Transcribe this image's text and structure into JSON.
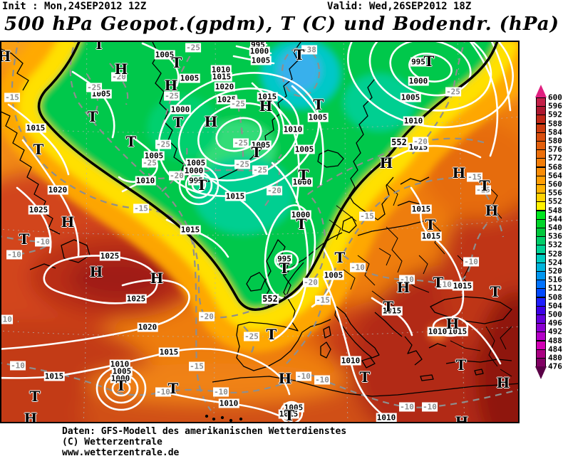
{
  "header": {
    "init": "Init : Mon,24SEP2012 12Z",
    "valid": "Valid: Wed,26SEP2012 18Z",
    "title": "500 hPa Geopot.(gpdm), T (C) und Bodendr. (hPa)"
  },
  "footer": {
    "line1": "Daten: GFS-Modell des amerikanischen Wetterdienstes",
    "line2": "(C) Wetterzentrale",
    "line3": "www.wetterzentrale.de"
  },
  "colorbar": {
    "unit": "gpdm",
    "values": [
      600,
      596,
      592,
      588,
      584,
      580,
      576,
      572,
      568,
      564,
      560,
      556,
      552,
      548,
      544,
      540,
      536,
      532,
      528,
      524,
      520,
      516,
      512,
      508,
      504,
      500,
      496,
      492,
      488,
      484,
      480,
      476
    ],
    "box_colors": [
      "#c42048",
      "#ad1830",
      "#c02818",
      "#cc3c10",
      "#d94e0e",
      "#e35f0c",
      "#ec6f0a",
      "#f37d08",
      "#f98c06",
      "#ff9e04",
      "#ffb202",
      "#ffd200",
      "#fff200",
      "#00e61e",
      "#00d528",
      "#00c83c",
      "#00cd69",
      "#00d296",
      "#00ccc0",
      "#00b4dc",
      "#0096f0",
      "#0072ff",
      "#0048ff",
      "#1e1eff",
      "#3c00e6",
      "#6400dc",
      "#8c00d2",
      "#b400c8",
      "#d200b4",
      "#aa0082",
      "#820064"
    ],
    "arrow_top_color": "#e02080",
    "arrow_bottom_color": "#5a0046"
  },
  "map": {
    "accent_colors": {
      "cold_green": "#00c84b",
      "cold_cyan": "#38b0ec",
      "warm_dark_red": "#a01f12",
      "transition_yellow": "#ffe000",
      "isobar_white": "#ffffff",
      "isotherm_gray": "#8e8e8e"
    },
    "labels": [
      [
        "1005",
        140,
        73,
        "p"
      ],
      [
        "1005",
        229,
        18,
        "p"
      ],
      [
        "995",
        360,
        4,
        "p"
      ],
      [
        "1000",
        362,
        13,
        "p"
      ],
      [
        "1005",
        364,
        26,
        "p"
      ],
      [
        "1005",
        264,
        51,
        "p"
      ],
      [
        "1010",
        308,
        39,
        "p"
      ],
      [
        "1015",
        309,
        49,
        "p"
      ],
      [
        "1020",
        313,
        63,
        "p"
      ],
      [
        "1025",
        316,
        81,
        "p"
      ],
      [
        "1015",
        373,
        77,
        "p"
      ],
      [
        "1000",
        251,
        95,
        "p"
      ],
      [
        "1005",
        214,
        160,
        "p"
      ],
      [
        "1010",
        202,
        195,
        "p"
      ],
      [
        "1005",
        364,
        145,
        "p"
      ],
      [
        "1005",
        273,
        170,
        "p"
      ],
      [
        "1000",
        270,
        181,
        "p"
      ],
      [
        "995",
        273,
        195,
        "p"
      ],
      [
        "1015",
        48,
        121,
        "p"
      ],
      [
        "1020",
        79,
        208,
        "p"
      ],
      [
        "1025",
        52,
        236,
        "p"
      ],
      [
        "1015",
        328,
        217,
        "p"
      ],
      [
        "1015",
        265,
        264,
        "p"
      ],
      [
        "995",
        585,
        28,
        "p"
      ],
      [
        "1000",
        585,
        55,
        "p"
      ],
      [
        "1005",
        574,
        78,
        "p"
      ],
      [
        "1010",
        578,
        111,
        "p"
      ],
      [
        "1005",
        444,
        106,
        "p"
      ],
      [
        "1010",
        409,
        123,
        "p"
      ],
      [
        "1005",
        425,
        151,
        "p"
      ],
      [
        "1000",
        422,
        197,
        "p"
      ],
      [
        "1000",
        420,
        243,
        "p"
      ],
      [
        "1015",
        585,
        148,
        "p"
      ],
      [
        "1015",
        589,
        235,
        "p"
      ],
      [
        "1015",
        603,
        273,
        "p"
      ],
      [
        "995",
        397,
        305,
        "p"
      ],
      [
        "1005",
        466,
        328,
        "p"
      ],
      [
        "1025",
        152,
        301,
        "p"
      ],
      [
        "1025",
        189,
        361,
        "p"
      ],
      [
        "1020",
        205,
        401,
        "p"
      ],
      [
        "1015",
        235,
        436,
        "p"
      ],
      [
        "1015",
        74,
        470,
        "p"
      ],
      [
        "1010",
        166,
        453,
        "p"
      ],
      [
        "1005",
        169,
        463,
        "p"
      ],
      [
        "1000",
        167,
        473,
        "p"
      ],
      [
        "1010",
        319,
        508,
        "p"
      ],
      [
        "1010",
        490,
        448,
        "p"
      ],
      [
        "1010",
        540,
        528,
        "p"
      ],
      [
        "1005",
        410,
        514,
        "p"
      ],
      [
        "1015",
        403,
        523,
        "p"
      ],
      [
        "1015",
        548,
        378,
        "p"
      ],
      [
        "1015",
        647,
        343,
        "p"
      ],
      [
        "1015",
        640,
        407,
        "p"
      ],
      [
        "1010",
        612,
        407,
        "p"
      ],
      [
        "-15",
        15,
        78,
        "t"
      ],
      [
        "-20",
        165,
        49,
        "t"
      ],
      [
        "-25",
        130,
        64,
        "t"
      ],
      [
        "-25",
        269,
        8,
        "t"
      ],
      [
        "-25",
        239,
        76,
        "t"
      ],
      [
        "-25",
        332,
        87,
        "t"
      ],
      [
        "-25",
        227,
        144,
        "t"
      ],
      [
        "-25",
        208,
        170,
        "t"
      ],
      [
        "-25",
        336,
        142,
        "t"
      ],
      [
        "-25",
        338,
        172,
        "t"
      ],
      [
        "-25",
        363,
        180,
        "t"
      ],
      [
        "-38",
        432,
        11,
        "t"
      ],
      [
        "-25",
        634,
        70,
        "t"
      ],
      [
        "-20",
        588,
        140,
        "t"
      ],
      [
        "-20",
        246,
        188,
        "t"
      ],
      [
        "-20",
        383,
        209,
        "t"
      ],
      [
        "-15",
        196,
        234,
        "t"
      ],
      [
        "-20",
        434,
        338,
        "t"
      ],
      [
        "-15",
        451,
        363,
        "t"
      ],
      [
        "-15",
        513,
        245,
        "t"
      ],
      [
        "-15",
        664,
        190,
        "t"
      ],
      [
        "-15",
        676,
        208,
        "t"
      ],
      [
        "-20",
        288,
        386,
        "t"
      ],
      [
        "-25",
        351,
        414,
        "t"
      ],
      [
        "-10",
        58,
        281,
        "t"
      ],
      [
        "-10",
        18,
        299,
        "t"
      ],
      [
        "-10",
        5,
        390,
        "t"
      ],
      [
        "-10",
        23,
        455,
        "t"
      ],
      [
        "-10",
        227,
        492,
        "t"
      ],
      [
        "-10",
        308,
        492,
        "t"
      ],
      [
        "-10",
        424,
        470,
        "t"
      ],
      [
        "-10",
        450,
        475,
        "t"
      ],
      [
        "-10",
        500,
        317,
        "t"
      ],
      [
        "-10",
        569,
        334,
        "t"
      ],
      [
        "-10",
        622,
        341,
        "t"
      ],
      [
        "-10",
        659,
        309,
        "t"
      ],
      [
        "-10",
        569,
        513,
        "t"
      ],
      [
        "-10",
        601,
        513,
        "t"
      ],
      [
        "-15",
        274,
        456,
        "t"
      ],
      [
        "552",
        377,
        361,
        "b"
      ],
      [
        "552",
        558,
        141,
        "b"
      ],
      [
        "H",
        4,
        20,
        "H"
      ],
      [
        "H",
        168,
        38,
        "H"
      ],
      [
        "H",
        238,
        61,
        "H"
      ],
      [
        "H",
        294,
        112,
        "H"
      ],
      [
        "H",
        371,
        90,
        "H"
      ],
      [
        "H",
        93,
        253,
        "H"
      ],
      [
        "H",
        133,
        323,
        "H"
      ],
      [
        "H",
        218,
        332,
        "H"
      ],
      [
        "H",
        41,
        529,
        "H"
      ],
      [
        "H",
        540,
        170,
        "H"
      ],
      [
        "H",
        642,
        184,
        "H"
      ],
      [
        "H",
        688,
        237,
        "H"
      ],
      [
        "H",
        564,
        345,
        "H"
      ],
      [
        "H",
        633,
        396,
        "H"
      ],
      [
        "H",
        398,
        473,
        "H"
      ],
      [
        "H",
        704,
        479,
        "H"
      ],
      [
        "H",
        646,
        534,
        "H"
      ],
      [
        "T",
        137,
        3,
        "T"
      ],
      [
        "T",
        246,
        29,
        "T"
      ],
      [
        "T",
        418,
        18,
        "T"
      ],
      [
        "T",
        600,
        27,
        "T"
      ],
      [
        "T",
        128,
        105,
        "T"
      ],
      [
        "T",
        248,
        113,
        "T"
      ],
      [
        "T",
        182,
        140,
        "T"
      ],
      [
        "T",
        52,
        151,
        "T"
      ],
      [
        "T",
        358,
        155,
        "T"
      ],
      [
        "T",
        445,
        88,
        "T"
      ],
      [
        "T",
        424,
        187,
        "T"
      ],
      [
        "T",
        281,
        201,
        "T"
      ],
      [
        "T",
        678,
        202,
        "T"
      ],
      [
        "T",
        421,
        256,
        "T"
      ],
      [
        "T",
        602,
        257,
        "T"
      ],
      [
        "T",
        32,
        277,
        "T"
      ],
      [
        "T",
        397,
        318,
        "T"
      ],
      [
        "T",
        475,
        303,
        "T"
      ],
      [
        "T",
        613,
        338,
        "T"
      ],
      [
        "T",
        693,
        351,
        "T"
      ],
      [
        "T",
        543,
        372,
        "T"
      ],
      [
        "T",
        379,
        411,
        "T"
      ],
      [
        "T",
        47,
        498,
        "T"
      ],
      [
        "T",
        168,
        483,
        "T"
      ],
      [
        "T",
        241,
        487,
        "T"
      ],
      [
        "T",
        510,
        471,
        "T"
      ],
      [
        "T",
        645,
        454,
        "T"
      ],
      [
        "T",
        404,
        525,
        "T"
      ]
    ]
  }
}
